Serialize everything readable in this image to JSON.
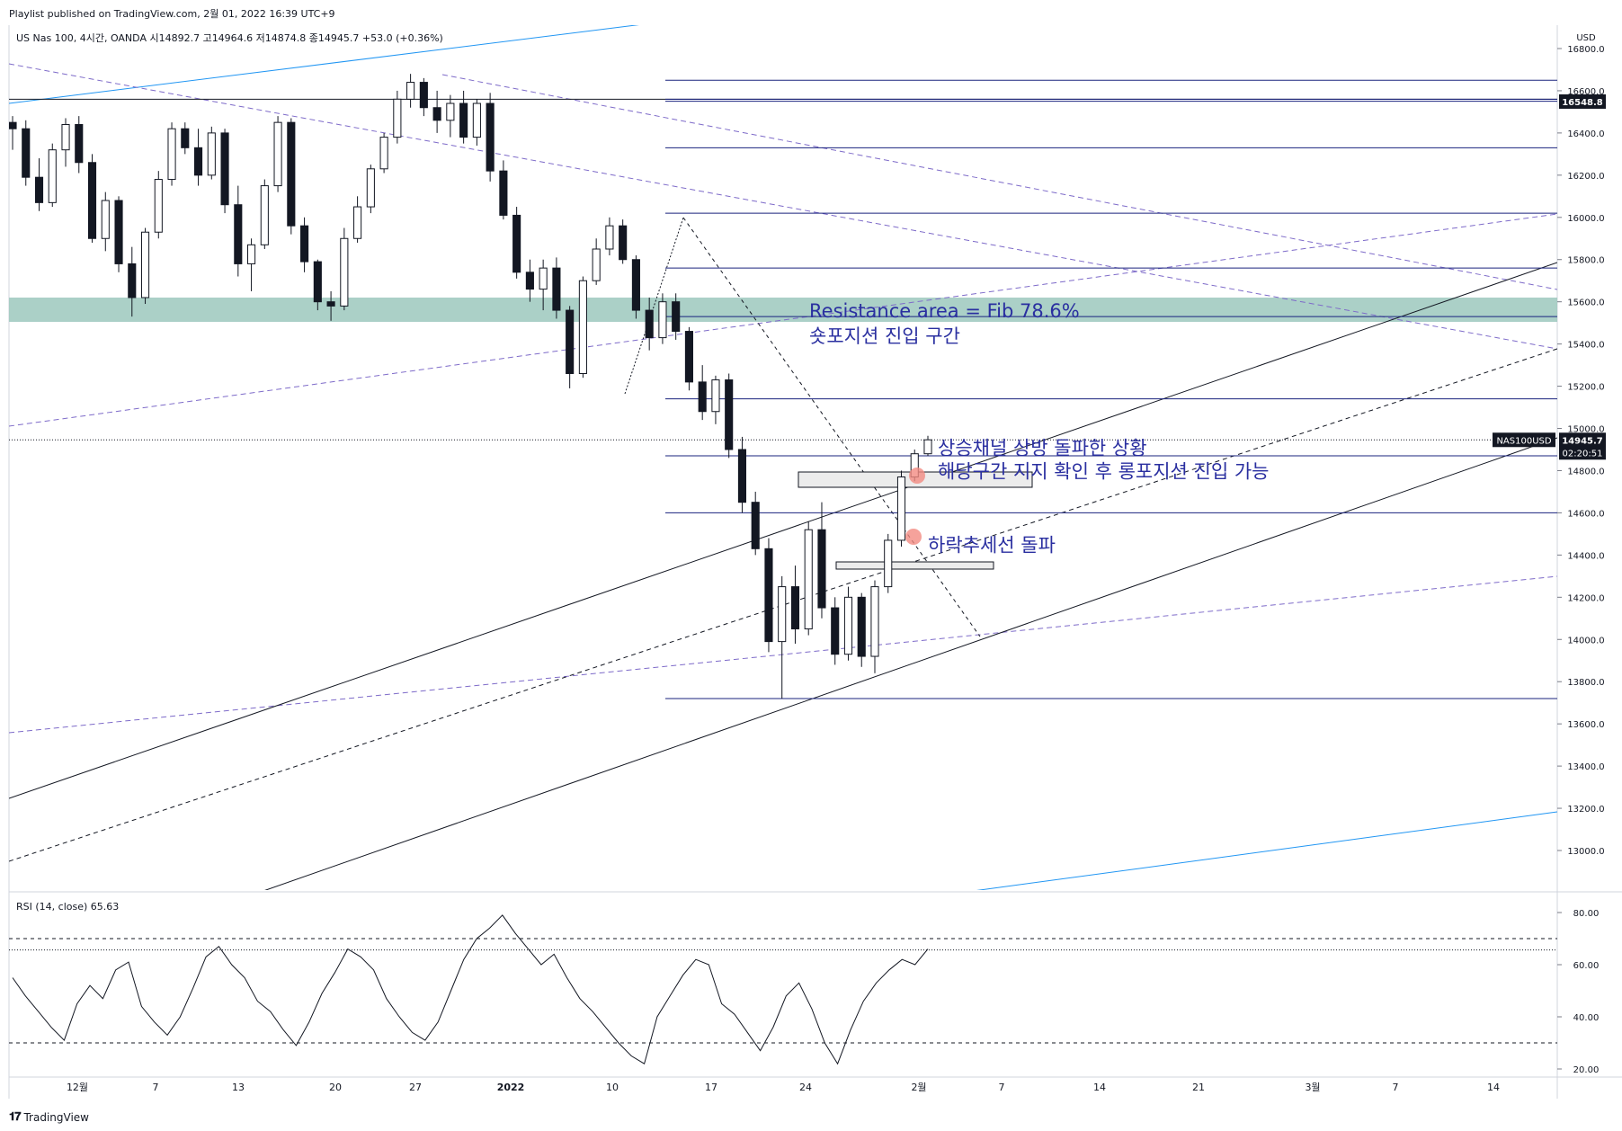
{
  "header": {
    "published": "Playlist published on TradingView.com, 2월 01, 2022 16:39 UTC+9"
  },
  "footer": {
    "logo_text": "TradingView",
    "logo_icon": "tradingview-logo-icon"
  },
  "colors": {
    "candle": "#131722",
    "blue_level": "#1a237e",
    "channel": "#131722",
    "purple_dash": "#7e6bc9",
    "light_blue": "#2196f3",
    "zone": "#9cc8bd",
    "annotation": "#2a2fa0",
    "marker": "#f28b82"
  },
  "chart_data": [
    {
      "type": "candlestick",
      "symbol_info": "US Nas 100, 4시간, OANDA  시14892.7  고14964.6  저14874.8  종14945.7  +53.0 (+0.36%)",
      "currency": "USD",
      "y_range": [
        12800,
        16900
      ],
      "price_ticks": [
        13000,
        13200,
        13400,
        13600,
        13800,
        14000,
        14200,
        14400,
        14600,
        14800,
        15000,
        15200,
        15400,
        15600,
        15800,
        16000,
        16200,
        16400,
        16600,
        16800
      ],
      "price_tick_labels": [
        "13000.0",
        "13200.0",
        "13400.0",
        "13600.0",
        "13800.0",
        "14000.0",
        "14200.0",
        "14400.0",
        "14600.0",
        "14800.0",
        "15000.0",
        "15200.0",
        "15400.0",
        "15600.0",
        "15800.0",
        "16000.0",
        "16200.0",
        "16400.0",
        "16600.0",
        "16800.0"
      ],
      "time_labels": [
        "12월",
        "7",
        "13",
        "20",
        "27",
        "2022",
        "10",
        "17",
        "24",
        "2월",
        "7",
        "14",
        "21",
        "3월",
        "7",
        "14"
      ],
      "horizontal_levels": [
        16650,
        16560,
        16550,
        16330,
        16020,
        15760,
        15530,
        15140,
        14870,
        14600,
        13720
      ],
      "resistance_zone": [
        15505,
        15620
      ],
      "last_price": {
        "symbol": "NAS100USD",
        "value": "14945.7",
        "countdown": "02:20:51"
      },
      "marked_level": {
        "value": "16548.8"
      },
      "candles_approx": [
        [
          16450,
          16480,
          16320,
          16420
        ],
        [
          16420,
          16460,
          16150,
          16190
        ],
        [
          16190,
          16280,
          16030,
          16070
        ],
        [
          16070,
          16350,
          16050,
          16320
        ],
        [
          16320,
          16470,
          16240,
          16440
        ],
        [
          16440,
          16480,
          16210,
          16260
        ],
        [
          16260,
          16300,
          15880,
          15900
        ],
        [
          15900,
          16120,
          15840,
          16080
        ],
        [
          16080,
          16100,
          15740,
          15780
        ],
        [
          15780,
          15860,
          15530,
          15620
        ],
        [
          15620,
          15950,
          15590,
          15930
        ],
        [
          15930,
          16220,
          15900,
          16180
        ],
        [
          16180,
          16450,
          16150,
          16420
        ],
        [
          16420,
          16450,
          16300,
          16330
        ],
        [
          16330,
          16420,
          16150,
          16200
        ],
        [
          16200,
          16430,
          16180,
          16400
        ],
        [
          16400,
          16420,
          16020,
          16060
        ],
        [
          16060,
          16150,
          15720,
          15780
        ],
        [
          15780,
          15900,
          15650,
          15870
        ],
        [
          15870,
          16180,
          15850,
          16150
        ],
        [
          16150,
          16480,
          16120,
          16450
        ],
        [
          16450,
          16470,
          15920,
          15960
        ],
        [
          15960,
          16000,
          15740,
          15790
        ],
        [
          15790,
          15800,
          15560,
          15600
        ],
        [
          15600,
          15650,
          15510,
          15580
        ],
        [
          15580,
          15950,
          15560,
          15900
        ],
        [
          15900,
          16100,
          15880,
          16050
        ],
        [
          16050,
          16250,
          16020,
          16230
        ],
        [
          16230,
          16400,
          16210,
          16380
        ],
        [
          16380,
          16600,
          16350,
          16560
        ],
        [
          16560,
          16680,
          16520,
          16640
        ],
        [
          16640,
          16660,
          16480,
          16520
        ],
        [
          16520,
          16600,
          16400,
          16460
        ],
        [
          16460,
          16580,
          16380,
          16540
        ],
        [
          16540,
          16600,
          16350,
          16380
        ],
        [
          16380,
          16560,
          16340,
          16540
        ],
        [
          16540,
          16590,
          16170,
          16220
        ],
        [
          16220,
          16270,
          15990,
          16010
        ],
        [
          16010,
          16050,
          15710,
          15740
        ],
        [
          15740,
          15800,
          15600,
          15660
        ],
        [
          15660,
          15800,
          15560,
          15760
        ],
        [
          15760,
          15810,
          15520,
          15560
        ],
        [
          15560,
          15580,
          15190,
          15260
        ],
        [
          15260,
          15720,
          15240,
          15700
        ],
        [
          15700,
          15900,
          15680,
          15850
        ],
        [
          15850,
          16000,
          15820,
          15960
        ],
        [
          15960,
          15990,
          15780,
          15800
        ],
        [
          15800,
          15820,
          15520,
          15560
        ],
        [
          15560,
          15620,
          15370,
          15430
        ],
        [
          15430,
          15640,
          15400,
          15600
        ],
        [
          15600,
          15640,
          15420,
          15460
        ],
        [
          15460,
          15480,
          15180,
          15220
        ],
        [
          15220,
          15300,
          15040,
          15080
        ],
        [
          15080,
          15250,
          15020,
          15230
        ],
        [
          15230,
          15260,
          14860,
          14900
        ],
        [
          14900,
          14960,
          14600,
          14650
        ],
        [
          14650,
          14700,
          14400,
          14430
        ],
        [
          14430,
          14480,
          13940,
          13990
        ],
        [
          13990,
          14300,
          13720,
          14250
        ],
        [
          14250,
          14350,
          13980,
          14050
        ],
        [
          14050,
          14560,
          14020,
          14520
        ],
        [
          14520,
          14650,
          14100,
          14150
        ],
        [
          14150,
          14200,
          13880,
          13930
        ],
        [
          13930,
          14250,
          13900,
          14200
        ],
        [
          14200,
          14220,
          13870,
          13920
        ],
        [
          13920,
          14280,
          13840,
          14250
        ],
        [
          14250,
          14500,
          14220,
          14470
        ],
        [
          14470,
          14800,
          14440,
          14770
        ],
        [
          14770,
          14900,
          14750,
          14880
        ],
        [
          14880,
          14965,
          14870,
          14946
        ]
      ],
      "annotations": [
        {
          "text": "Resistance area = Fib 78.6%",
          "price": 15560
        },
        {
          "text": "숏포지션 진입 구간",
          "price": 15440
        },
        {
          "text": "상승채널 상방 돌파한 상황",
          "price": 14910
        },
        {
          "text": "해당구간 지지 확인 후 롱포지션 진입 가능",
          "price": 14800
        },
        {
          "text": "하락추세선 돌파",
          "price": 14450
        }
      ]
    },
    {
      "type": "line",
      "indicator": "RSI (14, close)",
      "label": "RSI (14, close)",
      "last_value": "65.63",
      "y_range": [
        15,
        85
      ],
      "ticks": [
        20,
        40,
        60,
        80
      ],
      "tick_labels": [
        "20.00",
        "40.00",
        "60.00",
        "80.00"
      ],
      "levels": [
        70,
        30
      ],
      "values": [
        55,
        48,
        42,
        36,
        31,
        45,
        52,
        47,
        58,
        61,
        44,
        38,
        33,
        40,
        51,
        63,
        67,
        60,
        55,
        46,
        42,
        35,
        29,
        38,
        49,
        57,
        66,
        63,
        58,
        47,
        40,
        34,
        31,
        38,
        50,
        62,
        70,
        74,
        79,
        72,
        66,
        60,
        64,
        55,
        47,
        42,
        36,
        30,
        25,
        22,
        40,
        48,
        56,
        62,
        60,
        45,
        41,
        34,
        27,
        36,
        48,
        53,
        43,
        30,
        22,
        35,
        46,
        53,
        58,
        62,
        60,
        66
      ]
    }
  ]
}
